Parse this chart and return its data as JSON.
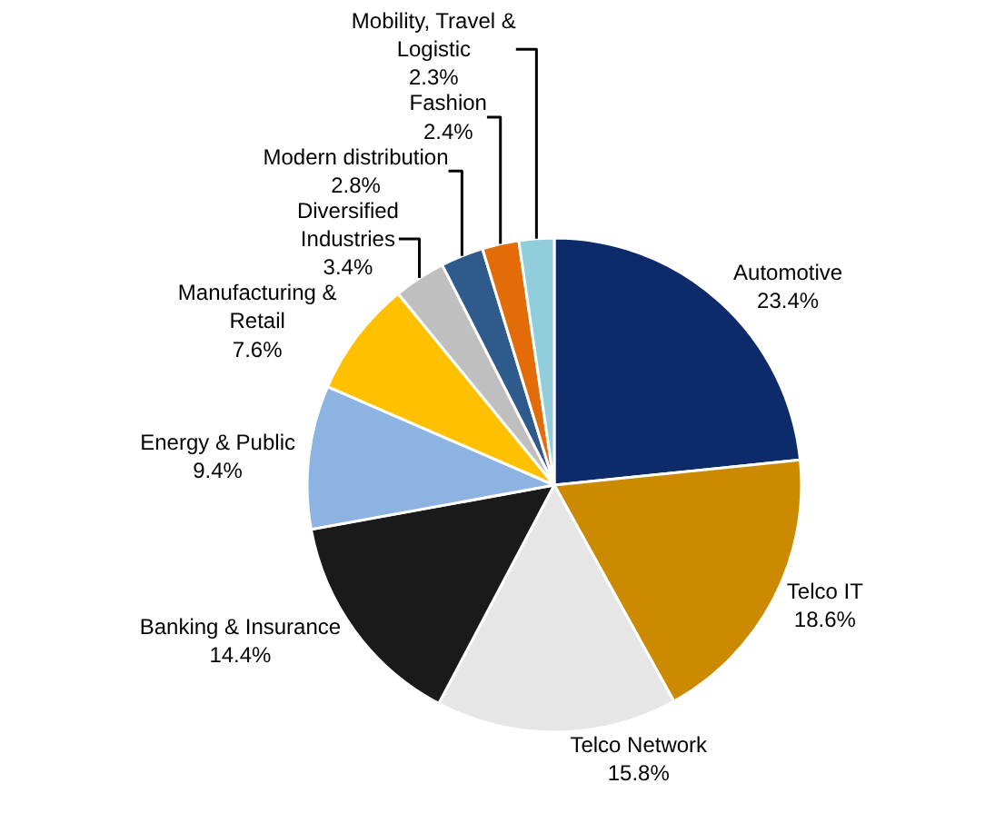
{
  "chart_data": {
    "type": "pie",
    "categories": [
      "Automotive",
      "Telco IT",
      "Telco Network",
      "Banking & Insurance",
      "Energy & Public",
      "Manufacturing & Retail",
      "Diversified Industries",
      "Modern distribution",
      "Fashion",
      "Mobility, Travel & Logistic"
    ],
    "values": [
      23.4,
      18.6,
      15.8,
      14.4,
      9.4,
      7.6,
      3.4,
      2.8,
      2.4,
      2.3
    ],
    "value_labels": [
      "23.4%",
      "18.6%",
      "15.8%",
      "14.4%",
      "9.4%",
      "7.6%",
      "3.4%",
      "2.8%",
      "2.4%",
      "2.3%"
    ],
    "colors": [
      "#0d2a6b",
      "#cc8a00",
      "#e6e6e6",
      "#1a1a1a",
      "#8db3e2",
      "#ffc000",
      "#bfbfbf",
      "#2e5a8c",
      "#e36c09",
      "#92cddc"
    ],
    "legend": false
  }
}
